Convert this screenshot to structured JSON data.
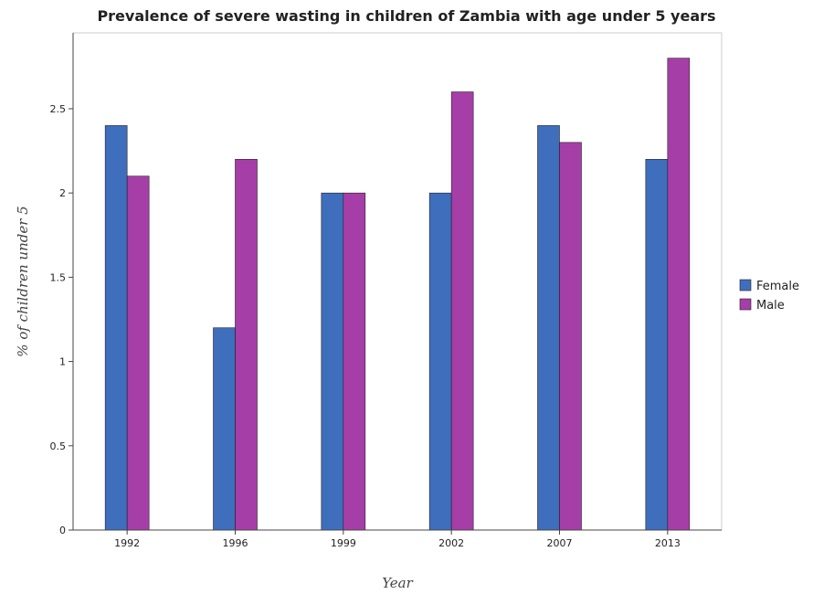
{
  "chart_data": {
    "type": "bar",
    "title": "Prevalence of severe wasting in children of Zambia with age under 5 years",
    "xlabel": "Year",
    "ylabel": "% of children under 5",
    "categories": [
      "1992",
      "1996",
      "1999",
      "2002",
      "2007",
      "2013"
    ],
    "series": [
      {
        "name": "Female",
        "color": "#3f6ebd",
        "values": [
          2.4,
          1.2,
          2.0,
          2.0,
          2.4,
          2.2
        ]
      },
      {
        "name": "Male",
        "color": "#a63ea8",
        "values": [
          2.1,
          2.2,
          2.0,
          2.6,
          2.3,
          2.8
        ]
      }
    ],
    "ylim": [
      0,
      2.95
    ],
    "yticks": [
      0,
      0.5,
      1,
      1.5,
      2,
      2.5
    ],
    "ytick_labels": [
      "0",
      "0.5",
      "1",
      "1.5",
      "2",
      "2.5"
    ],
    "legend": "right",
    "grid": false
  }
}
